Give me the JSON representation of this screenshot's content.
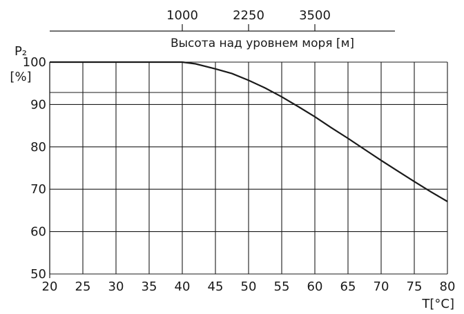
{
  "chart_data": {
    "type": "line",
    "xlabel": "T[°C]",
    "ylabel_main": "P₂",
    "ylabel_unit": "[%]",
    "xlim": [
      20,
      80
    ],
    "ylim": [
      50,
      100
    ],
    "x_ticks": [
      20,
      25,
      30,
      35,
      40,
      45,
      50,
      55,
      60,
      65,
      70,
      75,
      80
    ],
    "y_ticks": [
      50,
      60,
      70,
      80,
      90,
      100
    ],
    "secondary_axis": {
      "label": "Высота над уровнем моря [м]",
      "ticks": [
        {
          "label": "1000",
          "at_temperature": 40
        },
        {
          "label": "2250",
          "at_temperature": 50
        },
        {
          "label": "3500",
          "at_temperature": 60
        }
      ]
    },
    "grid": true,
    "series": [
      {
        "x": [
          20,
          25,
          30,
          35,
          40,
          42,
          45,
          47.5,
          50,
          52.5,
          55,
          57.5,
          60,
          62.5,
          65,
          67.5,
          70,
          72.5,
          75,
          77.5,
          80
        ],
        "y": [
          100,
          100,
          100,
          100,
          100,
          99.6,
          98.4,
          97.3,
          95.7,
          93.9,
          91.8,
          89.5,
          87.1,
          84.5,
          82.0,
          79.4,
          76.8,
          74.3,
          71.8,
          69.4,
          67.1
        ]
      }
    ]
  }
}
